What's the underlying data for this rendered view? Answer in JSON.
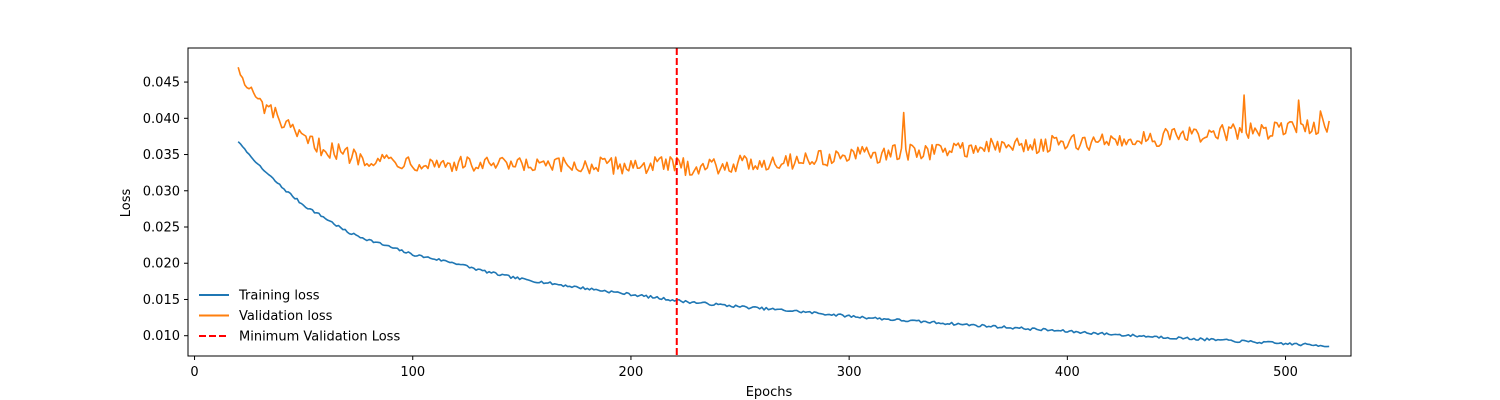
{
  "chart_data": {
    "type": "line",
    "title": "",
    "xlabel": "Epochs",
    "ylabel": "Loss",
    "xlim": [
      -3,
      530
    ],
    "ylim": [
      0.0072,
      0.0497
    ],
    "x_ticks": [
      0,
      100,
      200,
      300,
      400,
      500
    ],
    "y_ticks": [
      0.01,
      0.015,
      0.02,
      0.025,
      0.03,
      0.035,
      0.04,
      0.045
    ],
    "x_tick_labels": [
      "0",
      "100",
      "200",
      "300",
      "400",
      "500"
    ],
    "y_tick_labels": [
      "0.010",
      "0.015",
      "0.020",
      "0.025",
      "0.030",
      "0.035",
      "0.040",
      "0.045"
    ],
    "grid": false,
    "legend_position": "lower-left",
    "series": [
      {
        "name": "Training loss",
        "color": "#1f77b4",
        "x_start": 20,
        "x_step": 1,
        "keypoints": [
          [
            20,
            0.0368
          ],
          [
            25,
            0.035
          ],
          [
            30,
            0.0333
          ],
          [
            40,
            0.0305
          ],
          [
            50,
            0.028
          ],
          [
            60,
            0.0262
          ],
          [
            70,
            0.0243
          ],
          [
            80,
            0.0232
          ],
          [
            90,
            0.0222
          ],
          [
            100,
            0.0212
          ],
          [
            110,
            0.0206
          ],
          [
            120,
            0.02
          ],
          [
            130,
            0.0191
          ],
          [
            140,
            0.0184
          ],
          [
            150,
            0.0178
          ],
          [
            175,
            0.0167
          ],
          [
            200,
            0.0157
          ],
          [
            225,
            0.0147
          ],
          [
            250,
            0.014
          ],
          [
            275,
            0.0134
          ],
          [
            300,
            0.0127
          ],
          [
            325,
            0.0121
          ],
          [
            350,
            0.0116
          ],
          [
            375,
            0.0111
          ],
          [
            400,
            0.0106
          ],
          [
            425,
            0.0101
          ],
          [
            450,
            0.0097
          ],
          [
            475,
            0.0093
          ],
          [
            500,
            0.0089
          ],
          [
            520,
            0.0086
          ]
        ],
        "noise": 0.00018
      },
      {
        "name": "Validation loss",
        "color": "#ff7f0e",
        "x_start": 20,
        "x_step": 1,
        "keypoints": [
          [
            20,
            0.0472
          ],
          [
            23,
            0.0445
          ],
          [
            26,
            0.044
          ],
          [
            30,
            0.042
          ],
          [
            35,
            0.041
          ],
          [
            40,
            0.0395
          ],
          [
            45,
            0.038
          ],
          [
            50,
            0.037
          ],
          [
            60,
            0.0358
          ],
          [
            70,
            0.035
          ],
          [
            80,
            0.0345
          ],
          [
            100,
            0.034
          ],
          [
            125,
            0.0336
          ],
          [
            150,
            0.0334
          ],
          [
            175,
            0.0334
          ],
          [
            200,
            0.0335
          ],
          [
            220,
            0.0336
          ],
          [
            225,
            0.0333
          ],
          [
            250,
            0.0337
          ],
          [
            275,
            0.0342
          ],
          [
            300,
            0.0348
          ],
          [
            325,
            0.0352
          ],
          [
            350,
            0.0358
          ],
          [
            375,
            0.0362
          ],
          [
            400,
            0.0365
          ],
          [
            425,
            0.037
          ],
          [
            450,
            0.0375
          ],
          [
            475,
            0.038
          ],
          [
            500,
            0.0385
          ],
          [
            520,
            0.0392
          ]
        ],
        "noise": 0.0012,
        "spikes": [
          [
            325,
            0.0408
          ],
          [
            481,
            0.0432
          ],
          [
            506,
            0.0425
          ],
          [
            516,
            0.041
          ]
        ]
      }
    ],
    "vlines": [
      {
        "name": "Minimum Validation Loss",
        "x": 221,
        "color": "#ff0000",
        "style": "dashed"
      }
    ]
  }
}
